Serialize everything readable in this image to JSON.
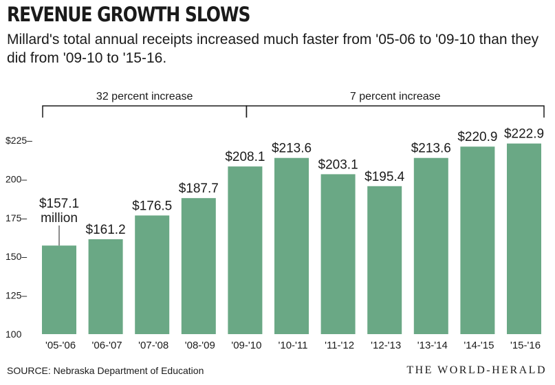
{
  "chart_data": {
    "type": "bar",
    "title": "REVENUE GROWTH SLOWS",
    "subtitle": "Millard's total annual receipts increased much faster from '05-06 to '09-10 than they did from '09-10 to '15-16.",
    "categories": [
      "'05-'06",
      "'06-'07",
      "'07-'08",
      "'08-'09",
      "'09-'10",
      "'10-'11",
      "'11-'12",
      "'12-'13",
      "'13-'14",
      "'14-'15",
      "'15-'16"
    ],
    "values": [
      157.1,
      161.2,
      176.5,
      187.7,
      208.1,
      213.6,
      203.1,
      195.4,
      213.6,
      220.9,
      222.9
    ],
    "value_labels": [
      "$157.1",
      "$161.2",
      "$176.5",
      "$187.7",
      "$208.1",
      "$213.6",
      "$203.1",
      "$195.4",
      "$213.6",
      "$220.9",
      "$222.9"
    ],
    "first_label_unit": "million",
    "ylim": [
      100,
      225
    ],
    "yticks": [
      100,
      125,
      150,
      175,
      200,
      225
    ],
    "ytick_labels": [
      "100",
      "125–",
      "150–",
      "175–",
      "200–",
      "$225–"
    ],
    "bar_color": "#6aa885",
    "grid": false,
    "brackets": [
      {
        "label": "32 percent increase",
        "from_category": 0,
        "to_category": 4
      },
      {
        "label": "7 percent increase",
        "from_category": 4,
        "to_category": 10
      }
    ],
    "xlabel": "",
    "ylabel": ""
  },
  "source": "SOURCE: Nebraska Department of Education",
  "brand": "THE WORLD-HERALD"
}
